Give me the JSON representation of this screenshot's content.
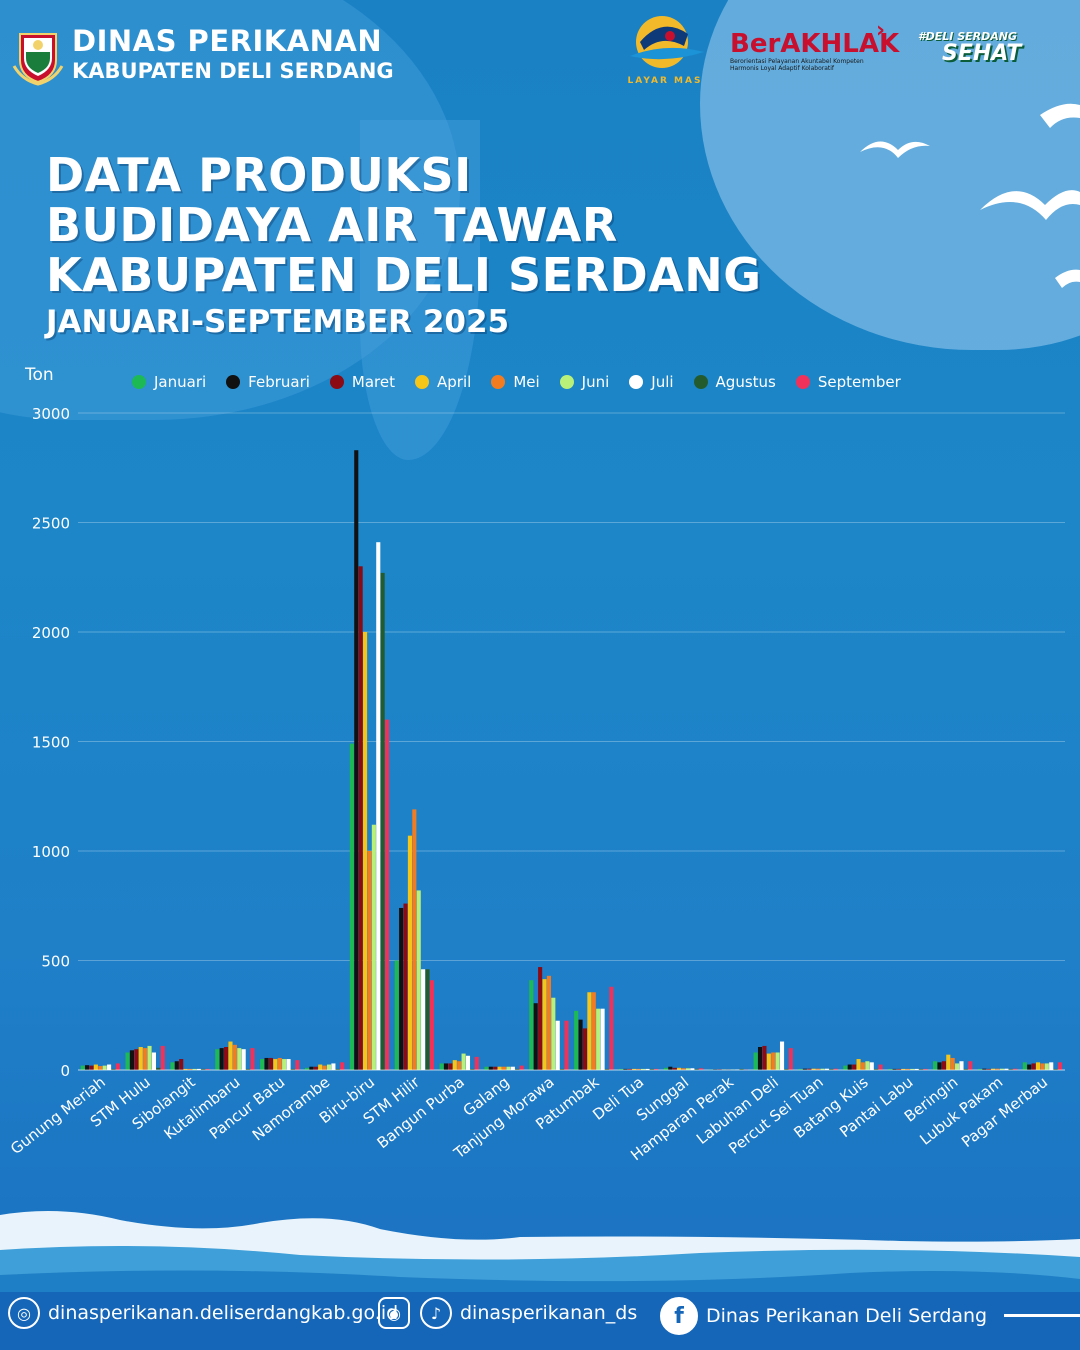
{
  "header": {
    "org_line1": "DINAS PERIKANAN",
    "org_line2": "KABUPATEN DELI SERDANG",
    "partner_logo1_text": "LAYAR MAS",
    "partner_logo2_text": "BerAKHLAK",
    "partner_logo2_sub1": "Berorientasi Pelayanan Akuntabel Kompeten",
    "partner_logo2_sub2": "Harmonis Loyal Adaptif Kolaboratif",
    "partner_logo3_line1": "#DELI SERDANG",
    "partner_logo3_line2": "SEHAT"
  },
  "title": {
    "line1": "DATA PRODUKSI",
    "line2": "BUDIDAYA AIR TAWAR",
    "line3": "KABUPATEN DELI SERDANG",
    "subtitle": "JANUARI-SEPTEMBER 2025"
  },
  "colors": {
    "Januari": "#1db954",
    "Februari": "#111111",
    "Maret": "#8b0a14",
    "April": "#f5c518",
    "Mei": "#f47c20",
    "Juni": "#b8f07a",
    "Juli": "#ffffff",
    "Agustus": "#245b2e",
    "September": "#f0325a"
  },
  "chart_data": {
    "type": "bar",
    "ylabel": "Ton",
    "ylim": [
      0,
      3000
    ],
    "yticks": [
      0,
      500,
      1000,
      1500,
      2000,
      2500,
      3000
    ],
    "grid": true,
    "legend_position": "top",
    "categories": [
      "Gunung Meriah",
      "STM Hulu",
      "Sibolangit",
      "Kutalimbaru",
      "Pancur Batu",
      "Namorambe",
      "Biru-biru",
      "STM Hilir",
      "Bangun Purba",
      "Galang",
      "Tanjung Morawa",
      "Patumbak",
      "Deli Tua",
      "Sunggal",
      "Hamparan Perak",
      "Labuhan Deli",
      "Percut Sei Tuan",
      "Batang Kuis",
      "Pantai Labu",
      "Beringin",
      "Lubuk Pakam",
      "Pagar Merbau"
    ],
    "series": [
      {
        "name": "Januari",
        "values": [
          20,
          80,
          35,
          95,
          50,
          10,
          1490,
          500,
          30,
          15,
          410,
          270,
          5,
          10,
          2,
          80,
          5,
          20,
          5,
          40,
          5,
          35
        ]
      },
      {
        "name": "Februari",
        "values": [
          22,
          90,
          40,
          100,
          55,
          15,
          2830,
          740,
          30,
          15,
          305,
          230,
          5,
          15,
          3,
          105,
          6,
          25,
          5,
          35,
          6,
          25
        ]
      },
      {
        "name": "Maret",
        "values": [
          20,
          95,
          50,
          105,
          55,
          15,
          2300,
          760,
          30,
          15,
          470,
          190,
          5,
          10,
          3,
          110,
          6,
          25,
          5,
          40,
          5,
          30
        ]
      },
      {
        "name": "April",
        "values": [
          25,
          105,
          5,
          130,
          50,
          25,
          2000,
          1070,
          45,
          15,
          415,
          355,
          5,
          10,
          2,
          75,
          6,
          50,
          5,
          70,
          6,
          35
        ]
      },
      {
        "name": "Mei",
        "values": [
          18,
          100,
          5,
          115,
          55,
          20,
          1000,
          1190,
          40,
          15,
          430,
          355,
          5,
          8,
          2,
          80,
          6,
          35,
          5,
          55,
          6,
          30
        ]
      },
      {
        "name": "Juni",
        "values": [
          20,
          110,
          5,
          100,
          50,
          25,
          1120,
          820,
          75,
          15,
          330,
          280,
          5,
          8,
          2,
          80,
          6,
          40,
          5,
          30,
          6,
          30
        ]
      },
      {
        "name": "Juli",
        "values": [
          25,
          80,
          5,
          95,
          50,
          30,
          2410,
          460,
          65,
          15,
          225,
          280,
          5,
          8,
          2,
          130,
          6,
          35,
          5,
          40,
          6,
          35
        ]
      },
      {
        "name": "Agustus",
        "values": [
          5,
          10,
          5,
          5,
          5,
          5,
          2270,
          460,
          5,
          5,
          5,
          5,
          5,
          5,
          5,
          5,
          5,
          5,
          5,
          5,
          5,
          5
        ]
      },
      {
        "name": "September",
        "values": [
          30,
          110,
          5,
          100,
          45,
          35,
          1600,
          410,
          60,
          20,
          225,
          380,
          5,
          8,
          2,
          100,
          6,
          25,
          5,
          40,
          6,
          35
        ]
      }
    ]
  },
  "footer": {
    "website": "dinasperikanan.deliserdangkab.go.id",
    "social_handle": "dinasperikanan_ds",
    "facebook": "Dinas Perikanan Deli Serdang",
    "icons": [
      "globe-icon",
      "instagram-icon",
      "tiktok-icon",
      "facebook-icon"
    ]
  }
}
